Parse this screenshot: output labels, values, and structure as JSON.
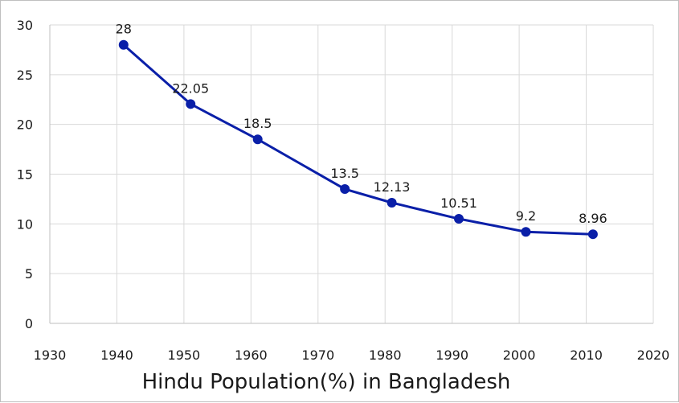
{
  "chart_data": {
    "type": "line",
    "title": "Hindu Population(%) in Bangladesh",
    "xlabel": "",
    "ylabel": "",
    "xlim": [
      1930,
      2020
    ],
    "ylim": [
      0,
      30
    ],
    "xticks": [
      1930,
      1940,
      1950,
      1960,
      1970,
      1980,
      1990,
      2000,
      2010,
      2020
    ],
    "yticks": [
      0,
      5,
      10,
      15,
      20,
      25,
      30
    ],
    "grid": true,
    "series": [
      {
        "name": "Hindu Population(%)",
        "color": "#0a1fa8",
        "x": [
          1941,
          1951,
          1961,
          1974,
          1981,
          1991,
          2001,
          2011
        ],
        "values": [
          28,
          22.05,
          18.5,
          13.5,
          12.13,
          10.51,
          9.2,
          8.96
        ],
        "labels": [
          "28",
          "22.05",
          "18.5",
          "13.5",
          "12.13",
          "10.51",
          "9.2",
          "8.96"
        ]
      }
    ]
  }
}
